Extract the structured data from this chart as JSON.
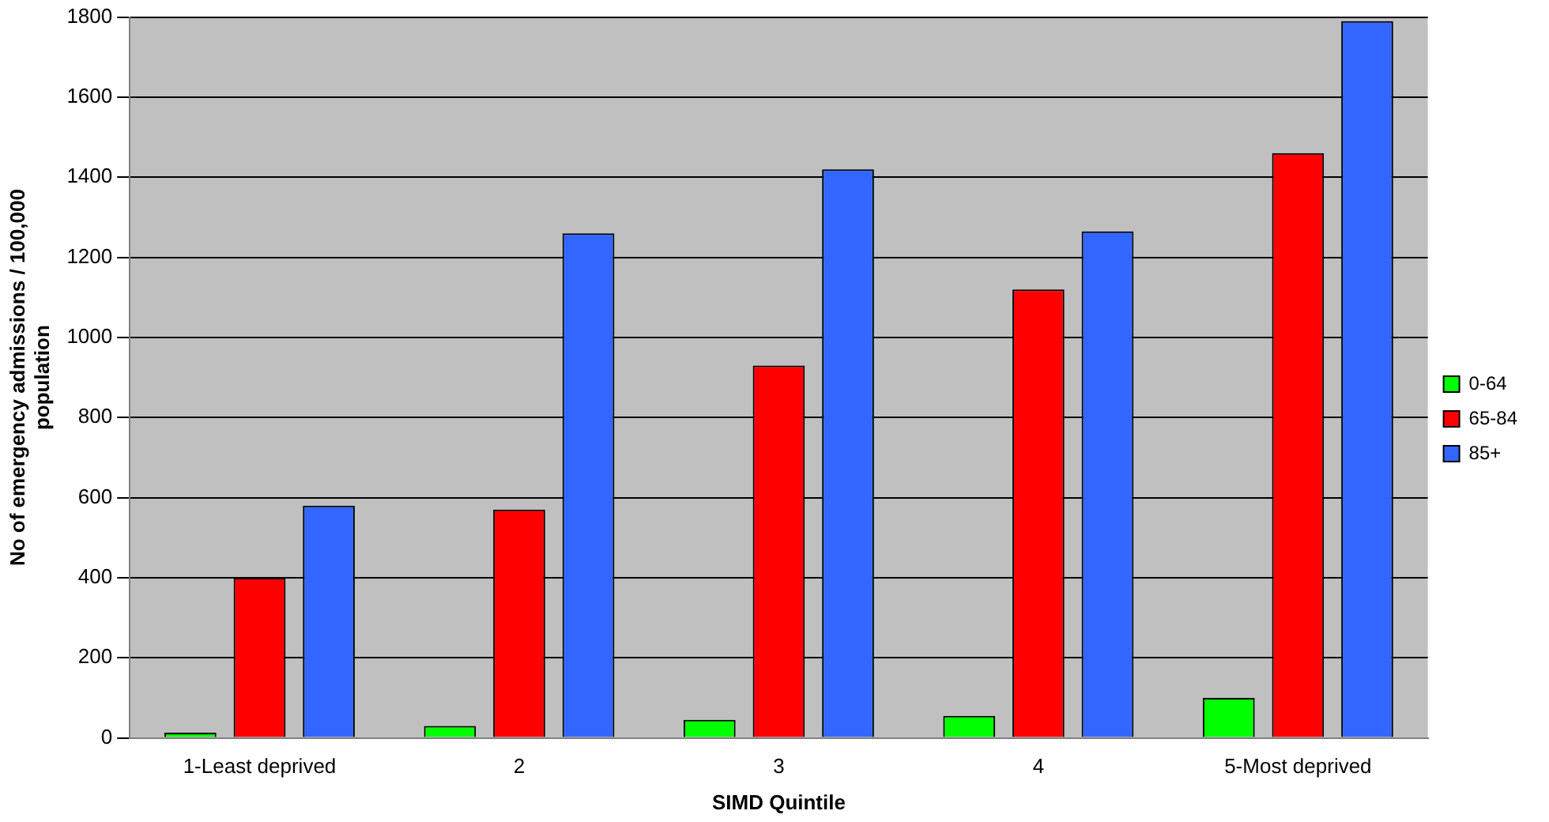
{
  "chart_data": {
    "type": "bar",
    "xlabel": "SIMD Quintile",
    "ylabel": "No of emergency admissions / 100,000 population",
    "categories": [
      "1-Least deprived",
      "2",
      "3",
      "4",
      "5-Most deprived"
    ],
    "series": [
      {
        "name": "0-64",
        "color": "#00ff00",
        "values": [
          13,
          30,
          45,
          55,
          100
        ]
      },
      {
        "name": "65-84",
        "color": "#ff0000",
        "values": [
          400,
          570,
          930,
          1120,
          1460
        ]
      },
      {
        "name": "85+",
        "color": "#3366ff",
        "values": [
          580,
          1260,
          1420,
          1265,
          1790
        ]
      }
    ],
    "ylim": [
      0,
      1800
    ],
    "yticks": [
      0,
      200,
      400,
      600,
      800,
      1000,
      1200,
      1400,
      1600,
      1800
    ],
    "grid": "y",
    "legend": "right"
  }
}
